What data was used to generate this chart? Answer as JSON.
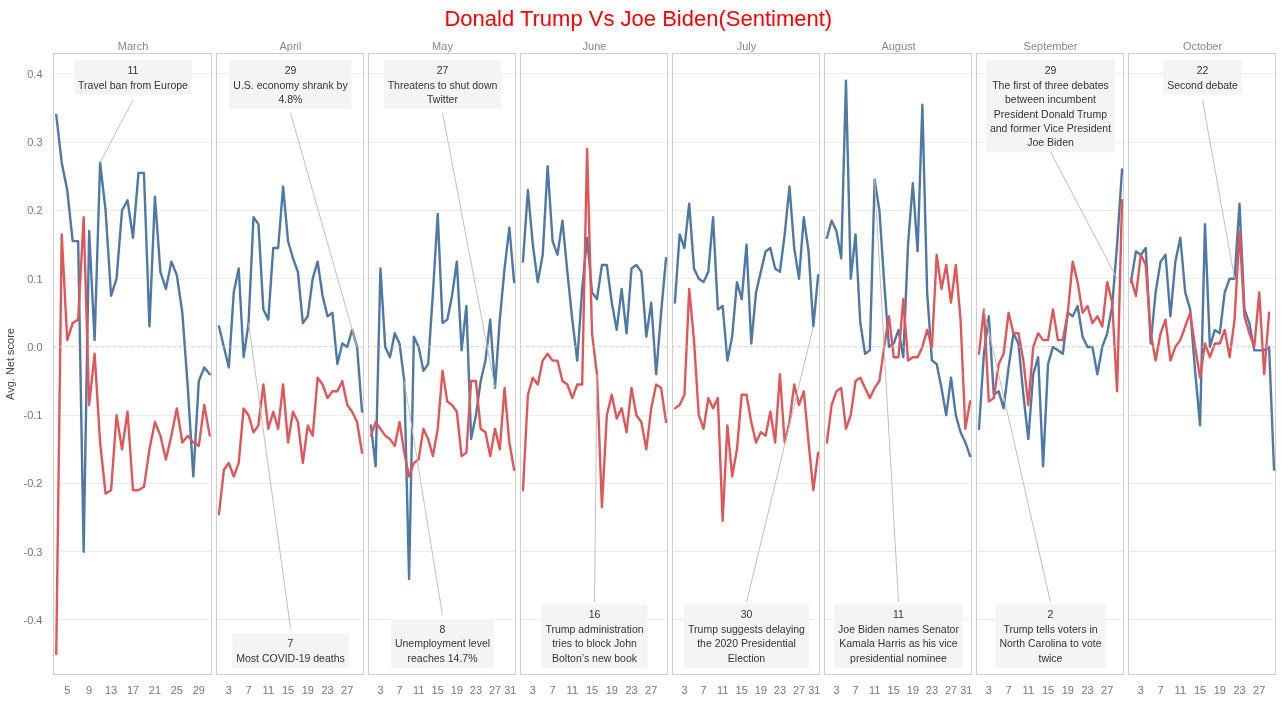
{
  "chart_data": [
    {
      "type": "other",
      "title": "Donald Trump Vs Joe Biden(Sentiment)"
    },
    {
      "type": "line",
      "x2label": "March",
      "ylabel": "Avg. Net score",
      "x": [
        3,
        4,
        5,
        6,
        7,
        8,
        9,
        10,
        11,
        12,
        13,
        14,
        15,
        16,
        17,
        18,
        19,
        20,
        21,
        22,
        23,
        24,
        25,
        26,
        27,
        28,
        29,
        30,
        31
      ],
      "xlim": [
        2.5,
        31.5
      ],
      "xticks": [
        5,
        9,
        13,
        17,
        21,
        25,
        29
      ],
      "ylim": [
        -0.48,
        0.43
      ],
      "yticks": [
        -0.4,
        -0.3,
        -0.2,
        -0.1,
        {
          "value": 0,
          "label": "0.0"
        },
        0.1,
        0.2,
        0.3,
        0.4
      ],
      "grid": "y",
      "ref_lines": [
        {
          "axis": "y",
          "value": 0,
          "color": "#c8c8c8",
          "line_style": "dotted"
        }
      ],
      "series": [
        {
          "color": "#4e79a7",
          "values": [
            0.34,
            0.27,
            0.23,
            0.155,
            0.155,
            -0.3,
            0.17,
            0.01,
            0.27,
            0.2,
            0.075,
            0.1,
            0.2,
            0.215,
            0.16,
            0.255,
            0.255,
            0.03,
            0.22,
            0.11,
            0.085,
            0.125,
            0.105,
            0.05,
            -0.06,
            -0.19,
            -0.05,
            -0.03,
            -0.04
          ]
        },
        {
          "color": "#e15759",
          "values": [
            -0.45,
            0.165,
            0.01,
            0.035,
            0.04,
            0.19,
            -0.085,
            -0.01,
            -0.14,
            -0.215,
            -0.21,
            -0.1,
            -0.15,
            -0.095,
            -0.21,
            -0.21,
            -0.205,
            -0.15,
            -0.11,
            -0.13,
            -0.165,
            -0.13,
            -0.09,
            -0.14,
            -0.13,
            -0.14,
            -0.145,
            -0.085,
            -0.13
          ]
        }
      ],
      "annotations": [
        {
          "text": "11\nTravel ban from Europe",
          "x": 11,
          "y": 0.27
        }
      ]
    },
    {
      "type": "line",
      "x2label": "April",
      "tick_labels": "x",
      "x": [
        1,
        2,
        3,
        4,
        5,
        6,
        7,
        8,
        9,
        10,
        11,
        12,
        13,
        14,
        15,
        16,
        17,
        18,
        19,
        20,
        21,
        22,
        23,
        24,
        25,
        26,
        27,
        28,
        29,
        30
      ],
      "xlim": [
        0.5,
        30.5
      ],
      "xticks": [
        3,
        7,
        11,
        15,
        19,
        23,
        27
      ],
      "ylim": [
        -0.48,
        0.43
      ],
      "yticks": [
        -0.4,
        -0.3,
        -0.2,
        -0.1,
        0,
        0.1,
        0.2,
        0.3,
        0.4
      ],
      "grid": "y",
      "ref_lines": [
        {
          "axis": "y",
          "value": 0,
          "color": "#c8c8c8",
          "line_style": "dotted"
        }
      ],
      "series": [
        {
          "color": "#4e79a7",
          "values": [
            0.03,
            0.0,
            -0.03,
            0.08,
            0.115,
            -0.015,
            0.035,
            0.19,
            0.18,
            0.055,
            0.04,
            0.145,
            0.145,
            0.235,
            0.155,
            0.13,
            0.11,
            0.035,
            0.045,
            0.1,
            0.125,
            0.075,
            0.045,
            0.05,
            -0.025,
            0.005,
            0.0,
            0.025,
            0.0,
            -0.095
          ]
        },
        {
          "color": "#e15759",
          "values": [
            -0.245,
            -0.18,
            -0.17,
            -0.19,
            -0.17,
            -0.09,
            -0.1,
            -0.125,
            -0.115,
            -0.055,
            -0.12,
            -0.095,
            -0.12,
            -0.055,
            -0.14,
            -0.095,
            -0.11,
            -0.17,
            -0.115,
            -0.13,
            -0.045,
            -0.055,
            -0.075,
            -0.065,
            -0.065,
            -0.05,
            -0.085,
            -0.095,
            -0.11,
            -0.155
          ]
        }
      ],
      "annotations": [
        {
          "text": "7\nMost COVID-19 deaths",
          "x": 7,
          "y": 0.035
        },
        {
          "text": "29\nU.S. economy shrank by\n4.8%",
          "x": 29,
          "y": 0.0
        }
      ]
    },
    {
      "type": "line",
      "x2label": "May",
      "tick_labels": "x",
      "x": [
        1,
        2,
        3,
        4,
        5,
        6,
        7,
        8,
        9,
        10,
        11,
        12,
        13,
        14,
        15,
        16,
        17,
        18,
        19,
        20,
        21,
        22,
        23,
        24,
        25,
        26,
        27,
        28,
        29,
        30,
        31
      ],
      "xlim": [
        0.5,
        31.5
      ],
      "xticks": [
        3,
        7,
        11,
        15,
        19,
        23,
        27,
        31
      ],
      "ylim": [
        -0.48,
        0.43
      ],
      "yticks": [
        -0.4,
        -0.3,
        -0.2,
        -0.1,
        0,
        0.1,
        0.2,
        0.3,
        0.4
      ],
      "grid": "y",
      "ref_lines": [
        {
          "axis": "y",
          "value": 0,
          "color": "#c8c8c8",
          "line_style": "dotted"
        }
      ],
      "series": [
        {
          "color": "#4e79a7",
          "values": [
            -0.115,
            -0.175,
            0.115,
            0.0,
            -0.015,
            0.02,
            0.005,
            -0.05,
            -0.34,
            0.015,
            0.0,
            -0.035,
            -0.025,
            0.08,
            0.195,
            0.035,
            0.04,
            0.075,
            0.125,
            -0.005,
            0.06,
            -0.135,
            -0.1,
            -0.05,
            -0.02,
            0.04,
            -0.06,
            0.04,
            0.115,
            0.175,
            0.095
          ]
        },
        {
          "color": "#e15759",
          "values": [
            -0.13,
            -0.11,
            -0.12,
            -0.13,
            -0.135,
            -0.145,
            -0.11,
            -0.155,
            -0.19,
            -0.17,
            -0.165,
            -0.12,
            -0.135,
            -0.16,
            -0.12,
            -0.035,
            -0.08,
            -0.085,
            -0.095,
            -0.16,
            -0.155,
            -0.05,
            -0.05,
            -0.12,
            -0.125,
            -0.16,
            -0.12,
            -0.15,
            -0.06,
            -0.14,
            -0.18
          ]
        }
      ],
      "annotations": [
        {
          "text": "8\nUnemployment level\nreaches 14.7%",
          "x": 8,
          "y": -0.05
        },
        {
          "text": "27\nThreatens to shut down\nTwitter",
          "x": 27,
          "y": -0.06
        }
      ]
    },
    {
      "type": "line",
      "x2label": "June",
      "tick_labels": "x",
      "x": [
        1,
        2,
        3,
        4,
        5,
        6,
        7,
        8,
        9,
        10,
        11,
        12,
        13,
        14,
        15,
        16,
        17,
        18,
        19,
        20,
        21,
        22,
        23,
        24,
        25,
        26,
        27,
        28,
        29,
        30
      ],
      "xlim": [
        0.5,
        30.5
      ],
      "xticks": [
        3,
        7,
        11,
        15,
        19,
        23,
        27
      ],
      "ylim": [
        -0.48,
        0.43
      ],
      "yticks": [
        -0.4,
        -0.3,
        -0.2,
        -0.1,
        0,
        0.1,
        0.2,
        0.3,
        0.4
      ],
      "grid": "y",
      "ref_lines": [
        {
          "axis": "y",
          "value": 0,
          "color": "#c8c8c8",
          "line_style": "dotted"
        }
      ],
      "series": [
        {
          "color": "#4e79a7",
          "values": [
            0.125,
            0.23,
            0.15,
            0.095,
            0.135,
            0.265,
            0.155,
            0.135,
            0.185,
            0.11,
            0.04,
            -0.02,
            0.085,
            0.16,
            0.08,
            0.07,
            0.12,
            0.12,
            0.065,
            0.025,
            0.085,
            0.02,
            0.115,
            0.12,
            0.11,
            0.015,
            0.065,
            -0.04,
            0.05,
            0.13
          ]
        },
        {
          "color": "#e15759",
          "values": [
            -0.21,
            -0.07,
            -0.045,
            -0.055,
            -0.02,
            -0.01,
            -0.02,
            -0.02,
            -0.05,
            -0.055,
            -0.075,
            -0.055,
            -0.055,
            0.29,
            0.02,
            -0.04,
            -0.235,
            -0.1,
            -0.07,
            -0.105,
            -0.09,
            -0.125,
            -0.06,
            -0.1,
            -0.11,
            -0.15,
            -0.09,
            -0.055,
            -0.06,
            -0.11
          ]
        }
      ],
      "annotations": [
        {
          "text": "16\nTrump administration\ntries to block John\nBolton’s new book",
          "x": 16,
          "y": -0.04
        }
      ]
    },
    {
      "type": "line",
      "x2label": "July",
      "tick_labels": "x",
      "x": [
        1,
        2,
        3,
        4,
        5,
        6,
        7,
        8,
        9,
        10,
        11,
        12,
        13,
        14,
        15,
        16,
        17,
        18,
        19,
        20,
        21,
        22,
        23,
        24,
        25,
        26,
        27,
        28,
        29,
        30,
        31
      ],
      "xlim": [
        0.5,
        31.5
      ],
      "xticks": [
        3,
        7,
        11,
        15,
        19,
        23,
        27,
        31
      ],
      "ylim": [
        -0.48,
        0.43
      ],
      "yticks": [
        -0.4,
        -0.3,
        -0.2,
        -0.1,
        0,
        0.1,
        0.2,
        0.3,
        0.4
      ],
      "grid": "y",
      "ref_lines": [
        {
          "axis": "y",
          "value": 0,
          "color": "#c8c8c8",
          "line_style": "dotted"
        }
      ],
      "series": [
        {
          "color": "#4e79a7",
          "values": [
            0.065,
            0.165,
            0.145,
            0.21,
            0.115,
            0.1,
            0.095,
            0.11,
            0.19,
            0.055,
            0.06,
            -0.02,
            0.015,
            0.095,
            0.07,
            0.15,
            0.005,
            0.08,
            0.11,
            0.14,
            0.145,
            0.115,
            0.11,
            0.165,
            0.235,
            0.145,
            0.1,
            0.19,
            0.14,
            0.03,
            0.105
          ]
        },
        {
          "color": "#e15759",
          "values": [
            -0.09,
            -0.085,
            -0.07,
            0.085,
            0.01,
            -0.1,
            -0.12,
            -0.075,
            -0.09,
            -0.075,
            -0.255,
            -0.115,
            -0.19,
            -0.15,
            -0.07,
            -0.07,
            -0.11,
            -0.14,
            -0.125,
            -0.13,
            -0.095,
            -0.14,
            -0.04,
            -0.14,
            -0.11,
            -0.055,
            -0.085,
            -0.065,
            -0.14,
            -0.21,
            -0.155
          ]
        }
      ],
      "annotations": [
        {
          "text": "30\nTrump suggests delaying\nthe 2020 Presidential\nElection",
          "x": 30,
          "y": 0.03
        }
      ]
    },
    {
      "type": "line",
      "x2label": "August",
      "tick_labels": "x",
      "x": [
        1,
        2,
        3,
        4,
        5,
        6,
        7,
        8,
        9,
        10,
        11,
        12,
        13,
        14,
        15,
        16,
        17,
        18,
        19,
        20,
        21,
        22,
        23,
        24,
        25,
        26,
        27,
        28,
        29,
        30,
        31
      ],
      "xlim": [
        0.5,
        31.5
      ],
      "xticks": [
        3,
        7,
        11,
        15,
        19,
        23,
        27,
        31
      ],
      "ylim": [
        -0.48,
        0.43
      ],
      "yticks": [
        -0.4,
        -0.3,
        -0.2,
        -0.1,
        0,
        0.1,
        0.2,
        0.3,
        0.4
      ],
      "grid": "y",
      "ref_lines": [
        {
          "axis": "y",
          "value": 0,
          "color": "#c8c8c8",
          "line_style": "dotted"
        }
      ],
      "series": [
        {
          "color": "#4e79a7",
          "values": [
            0.16,
            0.185,
            0.17,
            0.13,
            0.39,
            0.1,
            0.165,
            0.035,
            -0.01,
            -0.005,
            0.245,
            0.2,
            0.095,
            0.0,
            0.005,
            0.025,
            -0.015,
            0.15,
            0.24,
            0.14,
            0.355,
            0.08,
            -0.02,
            -0.025,
            -0.06,
            -0.1,
            -0.045,
            -0.1,
            -0.125,
            -0.14,
            -0.16
          ]
        },
        {
          "color": "#e15759",
          "values": [
            -0.14,
            -0.085,
            -0.065,
            -0.06,
            -0.12,
            -0.1,
            -0.05,
            -0.045,
            -0.06,
            -0.075,
            -0.06,
            -0.05,
            0.0,
            0.045,
            -0.015,
            -0.015,
            0.07,
            -0.02,
            -0.015,
            -0.015,
            0.0,
            0.025,
            0.0,
            0.135,
            0.085,
            0.12,
            0.065,
            0.12,
            0.04,
            -0.12,
            -0.08
          ]
        }
      ],
      "annotations": [
        {
          "text": "11\nJoe Biden names Senator\nKamala Harris as his vice\npresidential nominee",
          "x": 11,
          "y": 0.245
        }
      ]
    },
    {
      "type": "line",
      "x2label": "September",
      "tick_labels": "x",
      "x": [
        1,
        2,
        3,
        4,
        5,
        6,
        7,
        8,
        9,
        10,
        11,
        12,
        13,
        14,
        15,
        16,
        17,
        18,
        19,
        20,
        21,
        22,
        23,
        24,
        25,
        26,
        27,
        28,
        29,
        30
      ],
      "xlim": [
        0.5,
        30.5
      ],
      "xticks": [
        3,
        7,
        11,
        15,
        19,
        23,
        27
      ],
      "ylim": [
        -0.48,
        0.43
      ],
      "yticks": [
        -0.4,
        -0.3,
        -0.2,
        -0.1,
        0,
        0.1,
        0.2,
        0.3,
        0.4
      ],
      "grid": "y",
      "ref_lines": [
        {
          "axis": "y",
          "value": 0,
          "color": "#c8c8c8",
          "line_style": "dotted"
        }
      ],
      "series": [
        {
          "color": "#4e79a7",
          "values": [
            -0.12,
            -0.01,
            0.045,
            -0.07,
            -0.065,
            -0.09,
            -0.03,
            0.02,
            0.005,
            -0.07,
            -0.135,
            -0.04,
            -0.015,
            -0.175,
            -0.025,
            0.0,
            -0.005,
            -0.01,
            0.05,
            0.045,
            0.06,
            0.015,
            0.0,
            0.0,
            -0.04,
            0.0,
            0.02,
            0.06,
            0.15,
            0.26
          ]
        },
        {
          "color": "#e15759",
          "values": [
            -0.01,
            0.055,
            -0.08,
            -0.075,
            -0.025,
            -0.01,
            0.05,
            0.02,
            0.02,
            -0.02,
            -0.085,
            0.0,
            0.02,
            0.01,
            0.01,
            0.055,
            0.01,
            0.01,
            0.05,
            0.125,
            0.095,
            0.05,
            0.06,
            0.035,
            0.045,
            0.03,
            0.095,
            0.065,
            -0.065,
            0.215
          ]
        }
      ],
      "annotations": [
        {
          "text": "2\nTrump tells voters in\nNorth Carolina to vote\ntwice",
          "x": 2,
          "y": 0.055
        },
        {
          "text": "29\nThe first of three debates\nbetween incumbent\nPresident Donald Trump\nand former Vice President\nJoe Biden",
          "x": 29,
          "y": 0.1
        }
      ]
    },
    {
      "type": "line",
      "x2label": "October",
      "tick_labels": "x",
      "x": [
        1,
        2,
        3,
        4,
        5,
        6,
        7,
        8,
        9,
        10,
        11,
        12,
        13,
        14,
        15,
        16,
        17,
        18,
        19,
        20,
        21,
        22,
        23,
        24,
        25,
        26,
        27,
        28,
        29,
        30
      ],
      "xlim": [
        0.5,
        30.5
      ],
      "xticks": [
        3,
        7,
        11,
        15,
        19,
        23,
        27
      ],
      "ylim": [
        -0.48,
        0.43
      ],
      "yticks": [
        -0.4,
        -0.3,
        -0.2,
        -0.1,
        0,
        0.1,
        0.2,
        0.3,
        0.4
      ],
      "grid": "y",
      "ref_lines": [
        {
          "axis": "y",
          "value": 0,
          "color": "#c8c8c8",
          "line_style": "dotted"
        }
      ],
      "series": [
        {
          "color": "#4e79a7",
          "values": [
            0.095,
            0.14,
            0.135,
            0.145,
            0.005,
            0.08,
            0.125,
            0.135,
            0.045,
            0.125,
            0.16,
            0.08,
            0.055,
            -0.035,
            -0.115,
            0.18,
            0.0,
            0.025,
            0.02,
            0.08,
            0.1,
            0.1,
            0.21,
            0.055,
            0.035,
            -0.005,
            -0.005,
            -0.005,
            0.0,
            -0.18
          ]
        },
        {
          "color": "#e15759",
          "values": [
            0.1,
            0.075,
            0.135,
            0.12,
            0.02,
            -0.02,
            0.02,
            0.04,
            -0.02,
            0.0,
            0.01,
            0.03,
            0.05,
            0.0,
            -0.045,
            0.005,
            -0.015,
            0.005,
            0.005,
            0.025,
            -0.015,
            0.04,
            0.17,
            0.045,
            0.02,
            0.0,
            0.08,
            -0.04,
            0.05,
            null
          ]
        }
      ],
      "annotations": [
        {
          "text": "22\nSecond debate",
          "x": 22,
          "y": 0.1
        }
      ]
    }
  ]
}
